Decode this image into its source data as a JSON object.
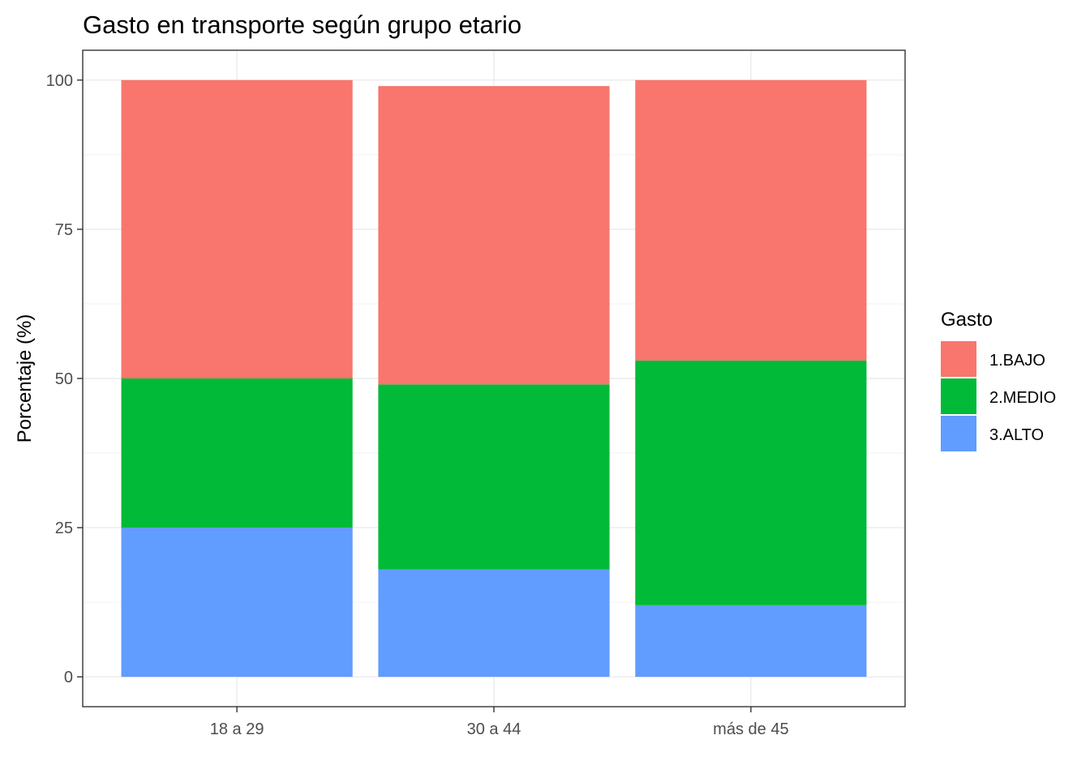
{
  "chart_data": {
    "type": "bar",
    "stacked": true,
    "title": "Gasto en transporte según grupo etario",
    "xlabel": "",
    "ylabel": "Porcentaje (%)",
    "ylim": [
      -5,
      105
    ],
    "yticks": [
      "0",
      "25",
      "50",
      "75",
      "100"
    ],
    "ytick_values": [
      0,
      25,
      50,
      75,
      100
    ],
    "grid": true,
    "legend_title": "Gasto",
    "legend_position": "right",
    "categories": [
      "18 a 29",
      "30 a 44",
      "más de 45"
    ],
    "series": [
      {
        "name": "1.BAJO",
        "color": "#F8766D",
        "values": [
          50,
          50,
          47
        ]
      },
      {
        "name": "2.MEDIO",
        "color": "#00BA38",
        "values": [
          25,
          31,
          41
        ]
      },
      {
        "name": "3.ALTO",
        "color": "#619CFF",
        "values": [
          25,
          18,
          12
        ]
      }
    ]
  }
}
